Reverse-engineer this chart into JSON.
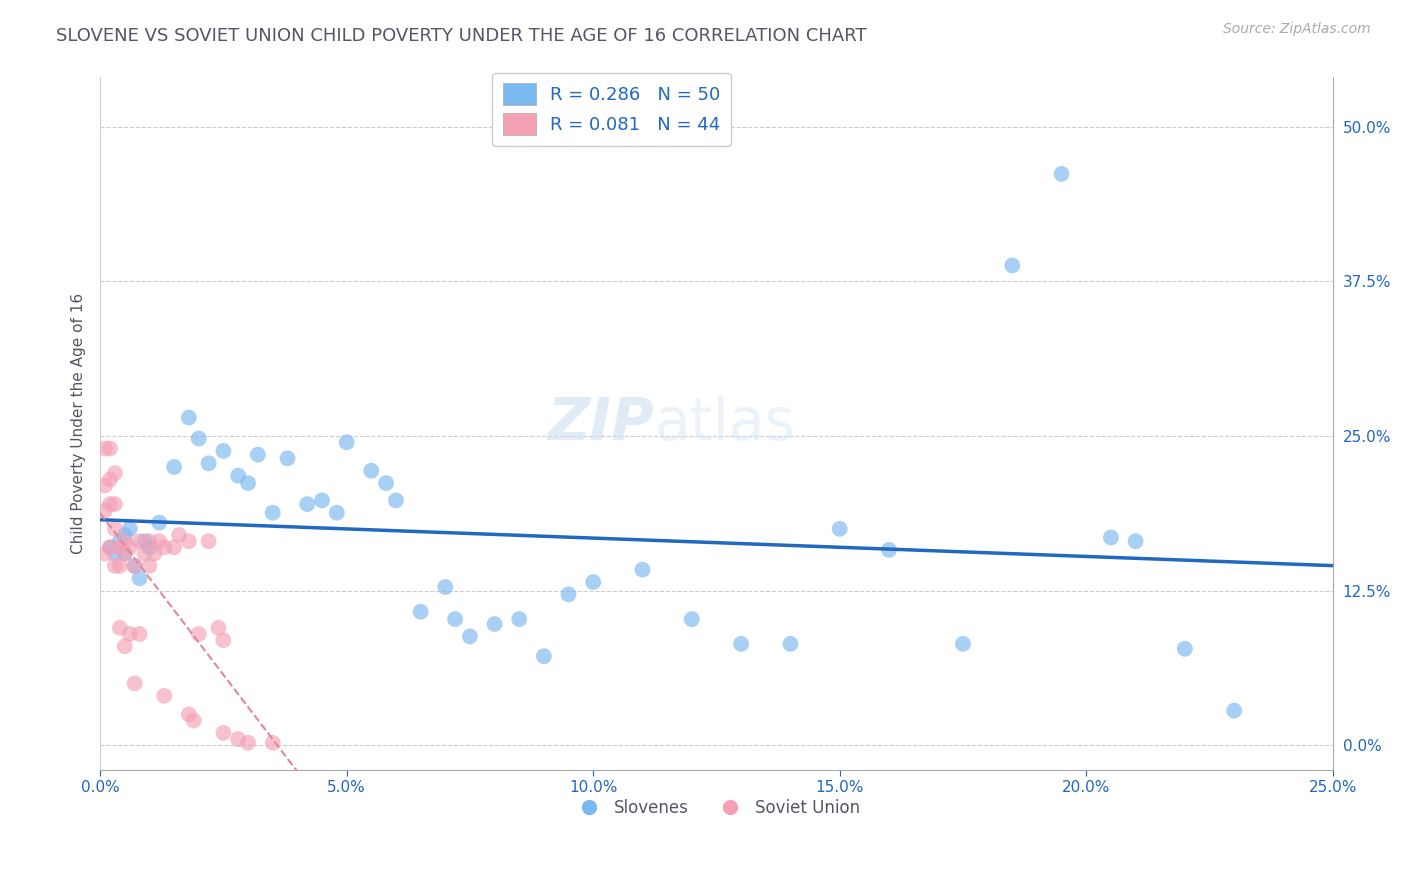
{
  "title": "SLOVENE VS SOVIET UNION CHILD POVERTY UNDER THE AGE OF 16 CORRELATION CHART",
  "source": "Source: ZipAtlas.com",
  "ylabel": "Child Poverty Under the Age of 16",
  "xlabel_ticks": [
    "0.0%",
    "5.0%",
    "10.0%",
    "15.0%",
    "20.0%",
    "25.0%"
  ],
  "xlabel_vals": [
    0,
    0.05,
    0.1,
    0.15,
    0.2,
    0.25
  ],
  "ylabel_ticks": [
    "0.0%",
    "12.5%",
    "25.0%",
    "37.5%",
    "50.0%"
  ],
  "ylabel_vals": [
    0,
    0.125,
    0.25,
    0.375,
    0.5
  ],
  "xlim": [
    0,
    0.25
  ],
  "ylim": [
    -0.02,
    0.54
  ],
  "slovenes_R": 0.286,
  "slovenes_N": 50,
  "soviet_R": 0.081,
  "soviet_N": 44,
  "slovenes_color": "#7ab8f0",
  "soviet_color": "#f4a0b5",
  "slovenes_line_color": "#2068c0",
  "soviet_line_color": "#e08898",
  "background_color": "#ffffff",
  "grid_color": "#cccccc",
  "title_color": "#555566",
  "legend_label_color": "#2068c0",
  "watermark_color": "#ddeeff",
  "slovenes_x": [
    0.002,
    0.003,
    0.004,
    0.005,
    0.005,
    0.006,
    0.007,
    0.008,
    0.009,
    0.01,
    0.012,
    0.015,
    0.018,
    0.02,
    0.022,
    0.025,
    0.028,
    0.03,
    0.032,
    0.035,
    0.038,
    0.042,
    0.045,
    0.048,
    0.05,
    0.055,
    0.058,
    0.06,
    0.065,
    0.07,
    0.072,
    0.075,
    0.08,
    0.085,
    0.09,
    0.095,
    0.1,
    0.11,
    0.12,
    0.13,
    0.14,
    0.15,
    0.16,
    0.175,
    0.185,
    0.195,
    0.205,
    0.21,
    0.22,
    0.23
  ],
  "slovenes_y": [
    0.16,
    0.155,
    0.165,
    0.155,
    0.17,
    0.175,
    0.145,
    0.135,
    0.165,
    0.16,
    0.18,
    0.225,
    0.265,
    0.248,
    0.228,
    0.238,
    0.218,
    0.212,
    0.235,
    0.188,
    0.232,
    0.195,
    0.198,
    0.188,
    0.245,
    0.222,
    0.212,
    0.198,
    0.108,
    0.128,
    0.102,
    0.088,
    0.098,
    0.102,
    0.072,
    0.122,
    0.132,
    0.142,
    0.102,
    0.082,
    0.082,
    0.175,
    0.158,
    0.082,
    0.388,
    0.462,
    0.168,
    0.165,
    0.078,
    0.028
  ],
  "soviet_x": [
    0.001,
    0.001,
    0.001,
    0.001,
    0.002,
    0.002,
    0.002,
    0.002,
    0.003,
    0.003,
    0.003,
    0.003,
    0.004,
    0.004,
    0.004,
    0.005,
    0.005,
    0.005,
    0.006,
    0.006,
    0.007,
    0.007,
    0.008,
    0.008,
    0.009,
    0.01,
    0.01,
    0.011,
    0.012,
    0.013,
    0.013,
    0.015,
    0.016,
    0.018,
    0.018,
    0.019,
    0.02,
    0.022,
    0.024,
    0.025,
    0.025,
    0.028,
    0.03,
    0.035
  ],
  "soviet_y": [
    0.24,
    0.21,
    0.19,
    0.155,
    0.24,
    0.215,
    0.195,
    0.16,
    0.22,
    0.195,
    0.175,
    0.145,
    0.16,
    0.145,
    0.095,
    0.165,
    0.155,
    0.08,
    0.16,
    0.09,
    0.145,
    0.05,
    0.165,
    0.09,
    0.155,
    0.165,
    0.145,
    0.155,
    0.165,
    0.16,
    0.04,
    0.16,
    0.17,
    0.165,
    0.025,
    0.02,
    0.09,
    0.165,
    0.095,
    0.085,
    0.01,
    0.005,
    0.002,
    0.002
  ]
}
